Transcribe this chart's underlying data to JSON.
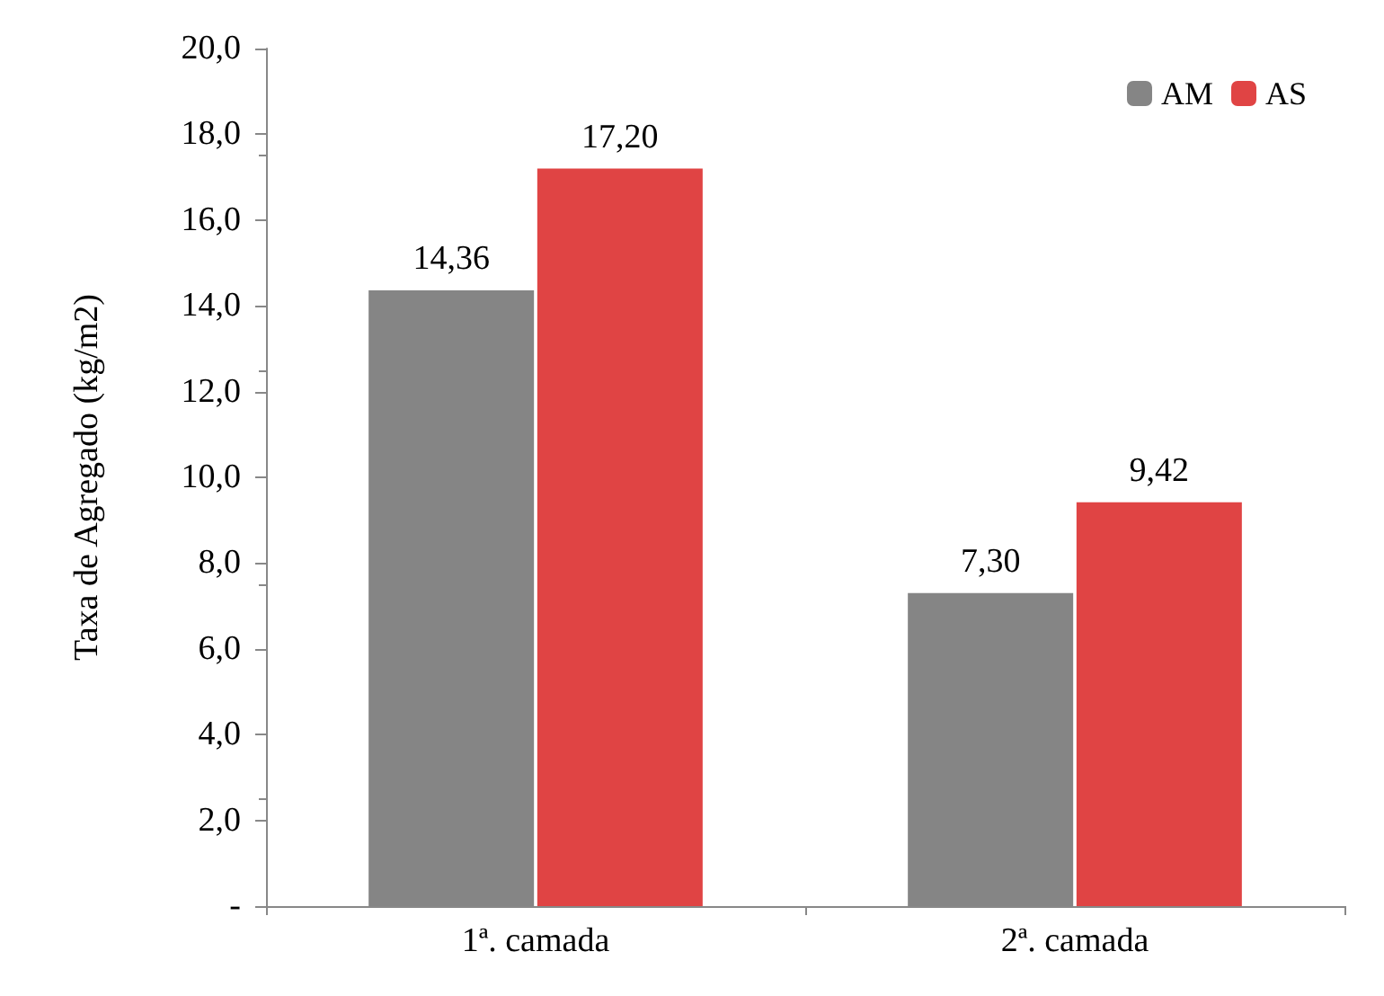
{
  "chart_data": {
    "type": "bar",
    "ylabel": "Taxa de Agregado (kg/m2)",
    "categories": [
      "1ª. camada",
      "2ª. camada"
    ],
    "series": [
      {
        "name": "AM",
        "color": "#858585",
        "values": [
          14.36,
          7.3
        ],
        "value_labels": [
          "14,36",
          "7,30"
        ]
      },
      {
        "name": "AS",
        "color": "#e04444",
        "values": [
          17.2,
          9.42
        ],
        "value_labels": [
          "17,20",
          "9,42"
        ]
      }
    ],
    "ylim": [
      0,
      20
    ],
    "yticks": [
      {
        "value": 0,
        "label": "-"
      },
      {
        "value": 2,
        "label": "2,0"
      },
      {
        "value": 4,
        "label": "4,0"
      },
      {
        "value": 6,
        "label": "6,0"
      },
      {
        "value": 8,
        "label": "8,0"
      },
      {
        "value": 10,
        "label": "10,0"
      },
      {
        "value": 12,
        "label": "12,0"
      },
      {
        "value": 14,
        "label": "14,0"
      },
      {
        "value": 16,
        "label": "16,0"
      },
      {
        "value": 18,
        "label": "18,0"
      },
      {
        "value": 20,
        "label": "20,0"
      }
    ],
    "grid": false,
    "legend": "top right"
  }
}
